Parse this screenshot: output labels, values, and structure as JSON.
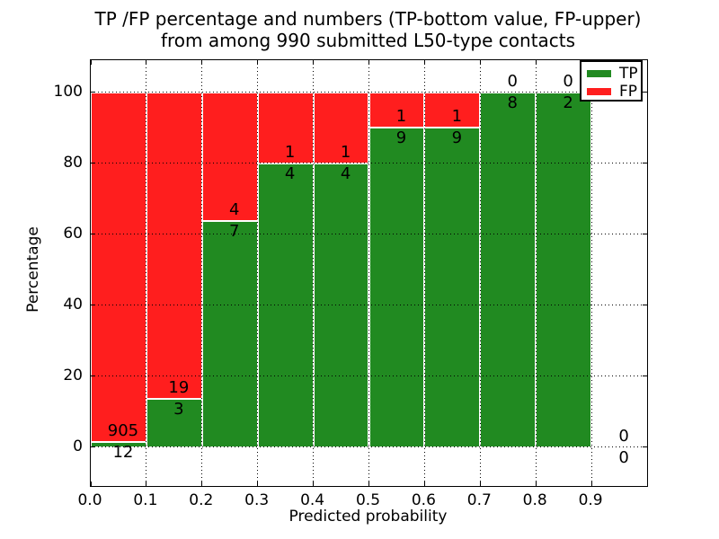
{
  "title": {
    "line1": "TP /FP percentage and numbers (TP-bottom value, FP-upper)",
    "line2": "from among 990 submitted L50-type contacts"
  },
  "axes": {
    "x_label": "Predicted probability",
    "y_label": "Percentage",
    "x_tick_labels": [
      "0.0",
      "0.1",
      "0.2",
      "0.3",
      "0.4",
      "0.5",
      "0.6",
      "0.7",
      "0.8",
      "0.9"
    ],
    "y_tick_labels": [
      "0",
      "20",
      "40",
      "60",
      "80",
      "100"
    ]
  },
  "chart_data": {
    "type": "bar",
    "stacked": true,
    "normalized_to_percent": true,
    "title": "TP /FP percentage and numbers (TP-bottom value, FP-upper) from among 990 submitted L50-type contacts",
    "total_contacts": 990,
    "xlabel": "Predicted probability",
    "ylabel": "Percentage",
    "xlim": [
      0.0,
      1.0
    ],
    "ylim": [
      -11,
      109
    ],
    "xticks": [
      0.0,
      0.1,
      0.2,
      0.3,
      0.4,
      0.5,
      0.6,
      0.7,
      0.8,
      0.9
    ],
    "yticks": [
      0,
      20,
      40,
      60,
      80,
      100
    ],
    "grid": true,
    "grid_style": "dotted",
    "legend_position": "upper right",
    "series": [
      {
        "name": "TP",
        "color": "#218a21",
        "position": "bottom"
      },
      {
        "name": "FP",
        "color": "#ff1e1e",
        "position": "upper"
      }
    ],
    "bar_edge_color": "#ffffff",
    "bins": [
      {
        "x0": 0.0,
        "x1": 0.1,
        "tp": 12,
        "fp": 905
      },
      {
        "x0": 0.1,
        "x1": 0.2,
        "tp": 3,
        "fp": 19
      },
      {
        "x0": 0.2,
        "x1": 0.3,
        "tp": 7,
        "fp": 4
      },
      {
        "x0": 0.3,
        "x1": 0.4,
        "tp": 4,
        "fp": 1
      },
      {
        "x0": 0.4,
        "x1": 0.5,
        "tp": 4,
        "fp": 1
      },
      {
        "x0": 0.5,
        "x1": 0.6,
        "tp": 9,
        "fp": 1
      },
      {
        "x0": 0.6,
        "x1": 0.7,
        "tp": 9,
        "fp": 1
      },
      {
        "x0": 0.7,
        "x1": 0.8,
        "tp": 8,
        "fp": 0
      },
      {
        "x0": 0.8,
        "x1": 0.9,
        "tp": 2,
        "fp": 0
      },
      {
        "x0": 0.9,
        "x1": 1.0,
        "tp": 0,
        "fp": 0
      }
    ]
  }
}
